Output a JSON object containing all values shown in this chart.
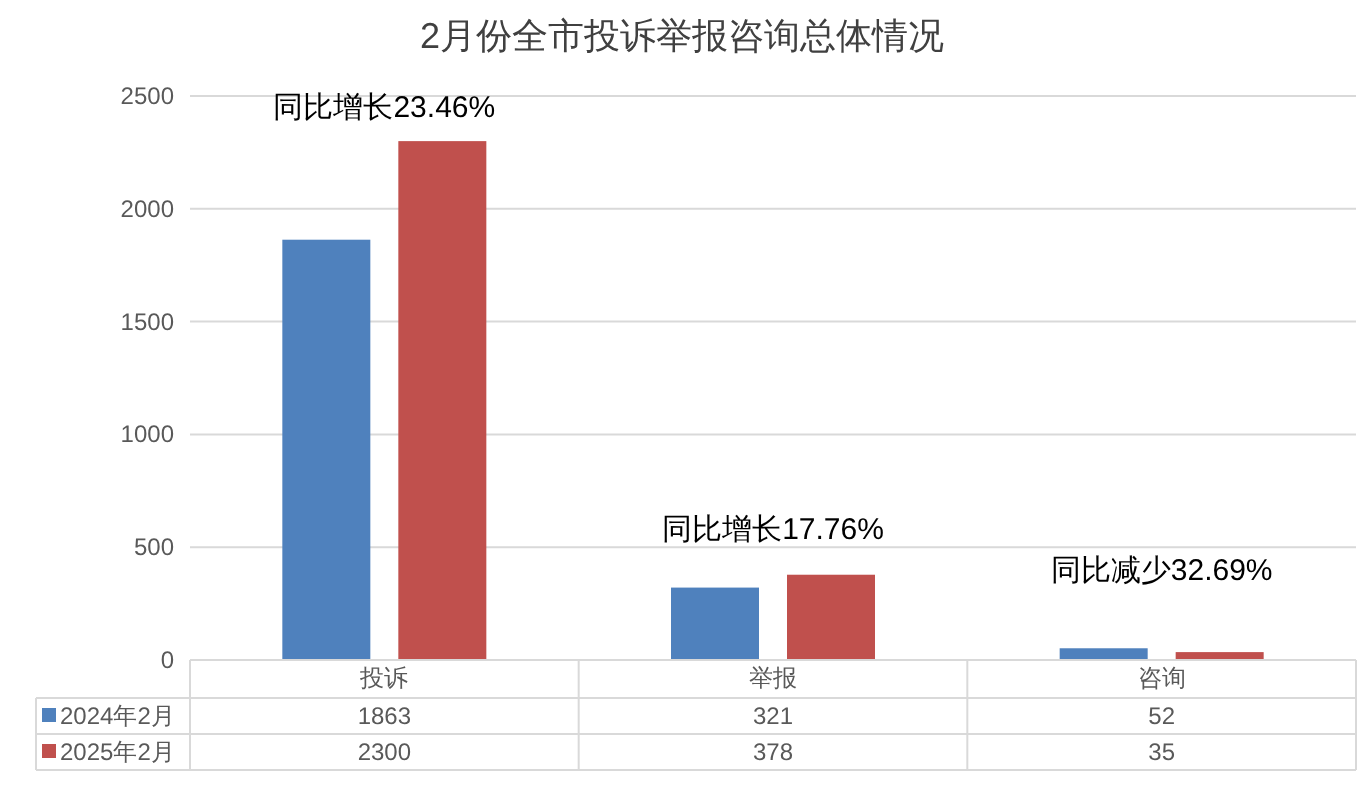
{
  "chart_data": {
    "type": "bar",
    "title": "2月份全市投诉举报咨询总体情况",
    "categories": [
      "投诉",
      "举报",
      "咨询"
    ],
    "series": [
      {
        "name": "2024年2月",
        "color": "#4f81bd",
        "values": [
          1863,
          321,
          52
        ]
      },
      {
        "name": "2025年2月",
        "color": "#c0504d",
        "values": [
          2300,
          378,
          35
        ]
      }
    ],
    "ylim": [
      0,
      2500
    ],
    "yticks": [
      0,
      500,
      1000,
      1500,
      2000,
      2500
    ],
    "grid": "y",
    "legend": "bottom",
    "data_labels": true,
    "annotations": [
      "同比增长23.46%",
      "同比增长17.76%",
      "同比减少32.69%"
    ]
  }
}
